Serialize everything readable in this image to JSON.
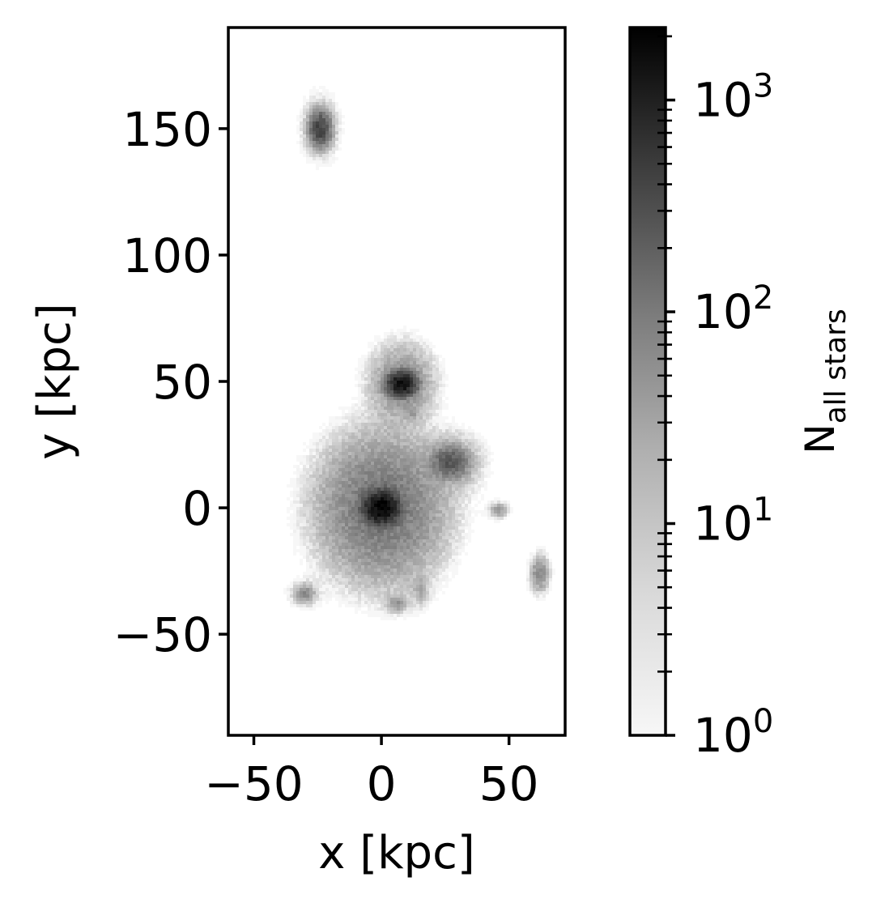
{
  "chart_data": {
    "type": "heatmap",
    "title": "",
    "xlabel": "x [kpc]",
    "ylabel": "y [kpc]",
    "xlim": [
      -60,
      72
    ],
    "ylim": [
      -90,
      190
    ],
    "xticks": [
      -50,
      0,
      50
    ],
    "yticks": [
      -50,
      0,
      50,
      100,
      150
    ],
    "xtick_labels": [
      "−50",
      "0",
      "50"
    ],
    "ytick_labels": [
      "−50",
      "0",
      "50",
      "100",
      "150"
    ],
    "colormap": "gray_r",
    "background": "#ffffff",
    "colorbar": {
      "label_base": "N",
      "label_sub": "all stars",
      "scale": "log",
      "range": [
        1,
        2200
      ],
      "ticks": [
        1,
        10,
        100,
        1000
      ],
      "tick_bases": [
        "10",
        "10",
        "10",
        "10"
      ],
      "tick_exponents": [
        "0",
        "1",
        "2",
        "3"
      ]
    },
    "density_clumps": [
      {
        "x": 0,
        "y": 0,
        "peak_count": 2200,
        "sigma_x": 3.2,
        "sigma_y": 3.0,
        "halo_count": 60,
        "halo_sigma_x": 12,
        "halo_sigma_y": 14
      },
      {
        "x": 8,
        "y": 49,
        "peak_count": 1500,
        "sigma_x": 2.6,
        "sigma_y": 2.2,
        "halo_count": 25,
        "halo_sigma_x": 6.5,
        "halo_sigma_y": 8
      },
      {
        "x": 27,
        "y": 18,
        "peak_count": 150,
        "sigma_x": 3.5,
        "sigma_y": 3.0,
        "halo_count": 10,
        "halo_sigma_x": 7,
        "halo_sigma_y": 6.5
      },
      {
        "x": -24,
        "y": 150,
        "peak_count": 300,
        "sigma_x": 2.0,
        "sigma_y": 3.2,
        "halo_count": 8,
        "halo_sigma_x": 4,
        "halo_sigma_y": 7
      },
      {
        "x": 62,
        "y": -26,
        "peak_count": 30,
        "sigma_x": 1.6,
        "sigma_y": 3.2,
        "halo_count": 5,
        "halo_sigma_x": 2.5,
        "halo_sigma_y": 5
      },
      {
        "x": -30,
        "y": -34,
        "peak_count": 25,
        "sigma_x": 2.0,
        "sigma_y": 1.8,
        "halo_count": 4,
        "halo_sigma_x": 4,
        "halo_sigma_y": 3.5
      },
      {
        "x": 6,
        "y": -38,
        "peak_count": 20,
        "sigma_x": 1.8,
        "sigma_y": 1.6,
        "halo_count": 3,
        "halo_sigma_x": 3.5,
        "halo_sigma_y": 3
      },
      {
        "x": 46,
        "y": -1,
        "peak_count": 15,
        "sigma_x": 1.6,
        "sigma_y": 1.4,
        "halo_count": 3,
        "halo_sigma_x": 3,
        "halo_sigma_y": 2.5
      },
      {
        "x": 15,
        "y": -32,
        "peak_count": 10,
        "sigma_x": 1.5,
        "sigma_y": 3.0,
        "halo_count": 2,
        "halo_sigma_x": 3,
        "halo_sigma_y": 5
      },
      {
        "x": 12,
        "y": 38,
        "peak_count": 12,
        "sigma_x": 1.3,
        "sigma_y": 1.5,
        "halo_count": 2,
        "halo_sigma_x": 2.5,
        "halo_sigma_y": 3
      }
    ]
  }
}
